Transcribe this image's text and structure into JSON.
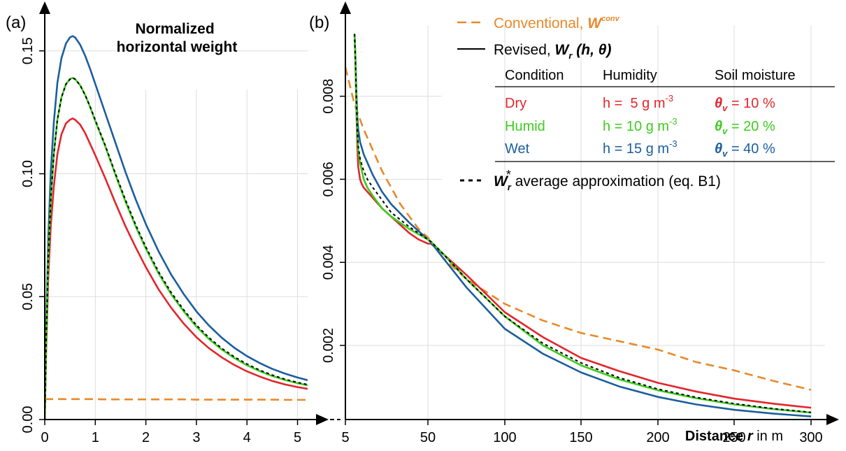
{
  "colors": {
    "conventional": "#E8892B",
    "dry": "#E1262C",
    "humid": "#3DCC1F",
    "wet": "#1B5E9E",
    "average": "#000000",
    "grid": "#DDDDDD",
    "axis": "#000000"
  },
  "chart_data": [
    {
      "panel_label": "(a)",
      "type": "line",
      "title": "Normalized\nhorizontal weight",
      "xlabel": "",
      "ylabel": "",
      "xlim": [
        0,
        5.2
      ],
      "ylim": [
        0,
        0.165
      ],
      "x_ticks": [
        0,
        1,
        2,
        3,
        4,
        5
      ],
      "y_ticks": [
        "0.00",
        "0.05",
        "0.10",
        "0.15"
      ],
      "grid": true,
      "x": [
        0.0,
        0.03,
        0.07,
        0.12,
        0.18,
        0.25,
        0.33,
        0.42,
        0.5,
        0.55,
        0.6,
        0.7,
        0.8,
        0.9,
        1.0,
        1.2,
        1.4,
        1.6,
        1.8,
        2.0,
        2.25,
        2.5,
        2.75,
        3.0,
        3.25,
        3.5,
        3.75,
        4.0,
        4.25,
        4.5,
        4.75,
        5.0,
        5.2
      ],
      "series": [
        {
          "name": "Dry",
          "key": "dry",
          "values": [
            0.0,
            0.03,
            0.058,
            0.079,
            0.095,
            0.108,
            0.116,
            0.1205,
            0.122,
            0.1225,
            0.122,
            0.12,
            0.1165,
            0.112,
            0.1075,
            0.098,
            0.088,
            0.0785,
            0.07,
            0.062,
            0.053,
            0.0455,
            0.039,
            0.0335,
            0.029,
            0.0253,
            0.0222,
            0.0196,
            0.0175,
            0.0157,
            0.0143,
            0.0132,
            0.0125
          ]
        },
        {
          "name": "Humid",
          "key": "humid",
          "values": [
            0.0,
            0.034,
            0.066,
            0.09,
            0.108,
            0.122,
            0.131,
            0.1365,
            0.1385,
            0.139,
            0.1385,
            0.136,
            0.132,
            0.127,
            0.1215,
            0.111,
            0.0995,
            0.0885,
            0.0785,
            0.0695,
            0.0595,
            0.051,
            0.044,
            0.0378,
            0.0327,
            0.0285,
            0.025,
            0.0221,
            0.0197,
            0.0177,
            0.0161,
            0.0148,
            0.0139
          ]
        },
        {
          "name": "Wet",
          "key": "wet",
          "values": [
            0.0,
            0.038,
            0.074,
            0.101,
            0.121,
            0.137,
            0.147,
            0.153,
            0.1555,
            0.156,
            0.1555,
            0.1525,
            0.148,
            0.1425,
            0.1365,
            0.1245,
            0.1125,
            0.1005,
            0.0895,
            0.0795,
            0.0685,
            0.059,
            0.051,
            0.044,
            0.0382,
            0.0333,
            0.0292,
            0.0258,
            0.023,
            0.0206,
            0.0187,
            0.0171,
            0.016
          ]
        },
        {
          "name": "W_r* average approximation (eq. B1)",
          "key": "average",
          "dashed": true,
          "values": [
            0.0,
            0.034,
            0.066,
            0.09,
            0.108,
            0.122,
            0.131,
            0.1365,
            0.1385,
            0.139,
            0.1385,
            0.136,
            0.132,
            0.1272,
            0.1218,
            0.1114,
            0.1,
            0.0892,
            0.0792,
            0.0702,
            0.0602,
            0.0517,
            0.0446,
            0.0384,
            0.0333,
            0.029,
            0.0255,
            0.0226,
            0.0201,
            0.0181,
            0.0164,
            0.0151,
            0.0142
          ]
        },
        {
          "name": "Conventional, W^conv",
          "key": "conventional",
          "dashed": true,
          "values": [
            0.0083,
            0.0083,
            0.0083,
            0.0083,
            0.0083,
            0.0083,
            0.0083,
            0.0083,
            0.0083,
            0.0083,
            0.0083,
            0.0083,
            0.0083,
            0.0083,
            0.0083,
            0.0082,
            0.0082,
            0.0082,
            0.0082,
            0.0082,
            0.0082,
            0.0082,
            0.0082,
            0.0081,
            0.0081,
            0.0081,
            0.0081,
            0.0081,
            0.0081,
            0.0081,
            0.008,
            0.008,
            0.008
          ]
        }
      ]
    },
    {
      "panel_label": "(b)",
      "type": "line",
      "title": "",
      "xlabel_bold": "Distance ",
      "xlabel_var": "r",
      "xlabel_unit": " in m",
      "ylabel": "",
      "xlim": [
        5,
        305
      ],
      "ylim": [
        0.0,
        0.0095
      ],
      "x_ticks": [
        "5",
        "50",
        "100",
        "150",
        "200",
        "250",
        "300"
      ],
      "x_tick_values": [
        5,
        50,
        100,
        150,
        200,
        250,
        300
      ],
      "y_ticks": [
        "0.002",
        "0.004",
        "0.006",
        "0.008"
      ],
      "y_tick_values": [
        0.002,
        0.004,
        0.006,
        0.008
      ],
      "grid": true,
      "series": [
        {
          "name": "Dry",
          "key": "dry",
          "x": [
            10,
            10.5,
            11,
            11.5,
            12,
            13,
            14,
            15,
            17,
            20,
            25,
            30,
            40,
            45,
            50,
            52,
            60,
            75,
            100,
            125,
            150,
            175,
            200,
            225,
            250,
            275,
            300
          ],
          "values": [
            0.0095,
            0.0088,
            0.0077,
            0.0068,
            0.0063,
            0.006,
            0.00588,
            0.0058,
            0.0057,
            0.00555,
            0.0053,
            0.0051,
            0.0047,
            0.00455,
            0.00445,
            0.00445,
            0.0042,
            0.0037,
            0.0028,
            0.0022,
            0.0017,
            0.00138,
            0.0011,
            0.00089,
            0.00072,
            0.0006,
            0.0005
          ]
        },
        {
          "name": "Humid",
          "key": "humid",
          "x": [
            10,
            10.5,
            11,
            11.5,
            12,
            13,
            14,
            15,
            17,
            20,
            25,
            30,
            40,
            50,
            52,
            60,
            75,
            100,
            125,
            150,
            175,
            200,
            225,
            250,
            275,
            300
          ],
          "values": [
            0.0095,
            0.0088,
            0.0078,
            0.0071,
            0.0067,
            0.0064,
            0.0062,
            0.006,
            0.0058,
            0.0056,
            0.0053,
            0.0051,
            0.0048,
            0.00455,
            0.0045,
            0.0042,
            0.0036,
            0.0027,
            0.002,
            0.00152,
            0.00118,
            0.00092,
            0.00073,
            0.00058,
            0.00047,
            0.00038
          ]
        },
        {
          "name": "Wet",
          "key": "wet",
          "x": [
            10,
            10.5,
            11,
            11.5,
            12,
            13,
            15,
            17,
            20,
            25,
            30,
            40,
            50,
            52,
            60,
            75,
            100,
            125,
            150,
            175,
            200,
            225,
            250,
            275,
            300
          ],
          "values": [
            0.0095,
            0.0089,
            0.0081,
            0.0075,
            0.0072,
            0.0069,
            0.0066,
            0.0064,
            0.0061,
            0.0057,
            0.0054,
            0.00495,
            0.00455,
            0.00448,
            0.0041,
            0.0034,
            0.0024,
            0.0018,
            0.00135,
            0.00101,
            0.00076,
            0.00058,
            0.00045,
            0.00036,
            0.00029
          ]
        },
        {
          "name": "W_r* average approximation (eq. B1)",
          "key": "average",
          "dashed": true,
          "x": [
            10,
            10.5,
            11,
            11.5,
            12,
            13,
            15,
            17,
            20,
            25,
            30,
            40,
            50,
            52,
            60,
            75,
            100,
            125,
            150,
            175,
            200,
            225,
            250,
            275,
            300
          ],
          "values": [
            0.0095,
            0.0088,
            0.0079,
            0.0072,
            0.0068,
            0.0065,
            0.0062,
            0.006,
            0.0058,
            0.0055,
            0.0052,
            0.00485,
            0.00455,
            0.0045,
            0.0042,
            0.0036,
            0.0027,
            0.00205,
            0.00158,
            0.00122,
            0.00095,
            0.00075,
            0.0006,
            0.00048,
            0.00039
          ]
        },
        {
          "name": "Conventional, W^conv",
          "key": "conventional",
          "dashed": true,
          "x": [
            5,
            10,
            15,
            20,
            25,
            30,
            35,
            40,
            45,
            50,
            60,
            75,
            100,
            125,
            150,
            175,
            200,
            225,
            250,
            275,
            300
          ],
          "values": [
            0.0087,
            0.0078,
            0.0072,
            0.0067,
            0.0062,
            0.0058,
            0.0054,
            0.0051,
            0.0048,
            0.0046,
            0.0041,
            0.0036,
            0.003,
            0.0026,
            0.0023,
            0.0021,
            0.0019,
            0.0016,
            0.0014,
            0.00115,
            0.00093
          ]
        }
      ]
    }
  ],
  "legend": {
    "conventional_label": "Conventional, ",
    "conventional_symbol": "W",
    "conventional_sup": "conv",
    "revised_label": "Revised, ",
    "revised_symbol": "W",
    "revised_sub": "r",
    "revised_args": " (h, θ)",
    "average_symbol": "W",
    "average_sub": "r",
    "average_sup": "*",
    "average_label": " average approximation (eq. B1)",
    "table_headers": [
      "Condition",
      "Humidity",
      "Soil moisture"
    ],
    "table_rows": [
      {
        "key": "dry",
        "condition": "Dry",
        "humidity_prefix": "h =  5 g m",
        "humidity_exp": "-3",
        "theta": "θ",
        "theta_sub": "v",
        "moisture": " = 10 %"
      },
      {
        "key": "humid",
        "condition": "Humid",
        "humidity_prefix": "h = 10 g m",
        "humidity_exp": "-3",
        "theta": "θ",
        "theta_sub": "v",
        "moisture": " = 20 %"
      },
      {
        "key": "wet",
        "condition": "Wet",
        "humidity_prefix": "h = 15 g m",
        "humidity_exp": "-3",
        "theta": "θ",
        "theta_sub": "v",
        "moisture": " = 40 %"
      }
    ]
  }
}
